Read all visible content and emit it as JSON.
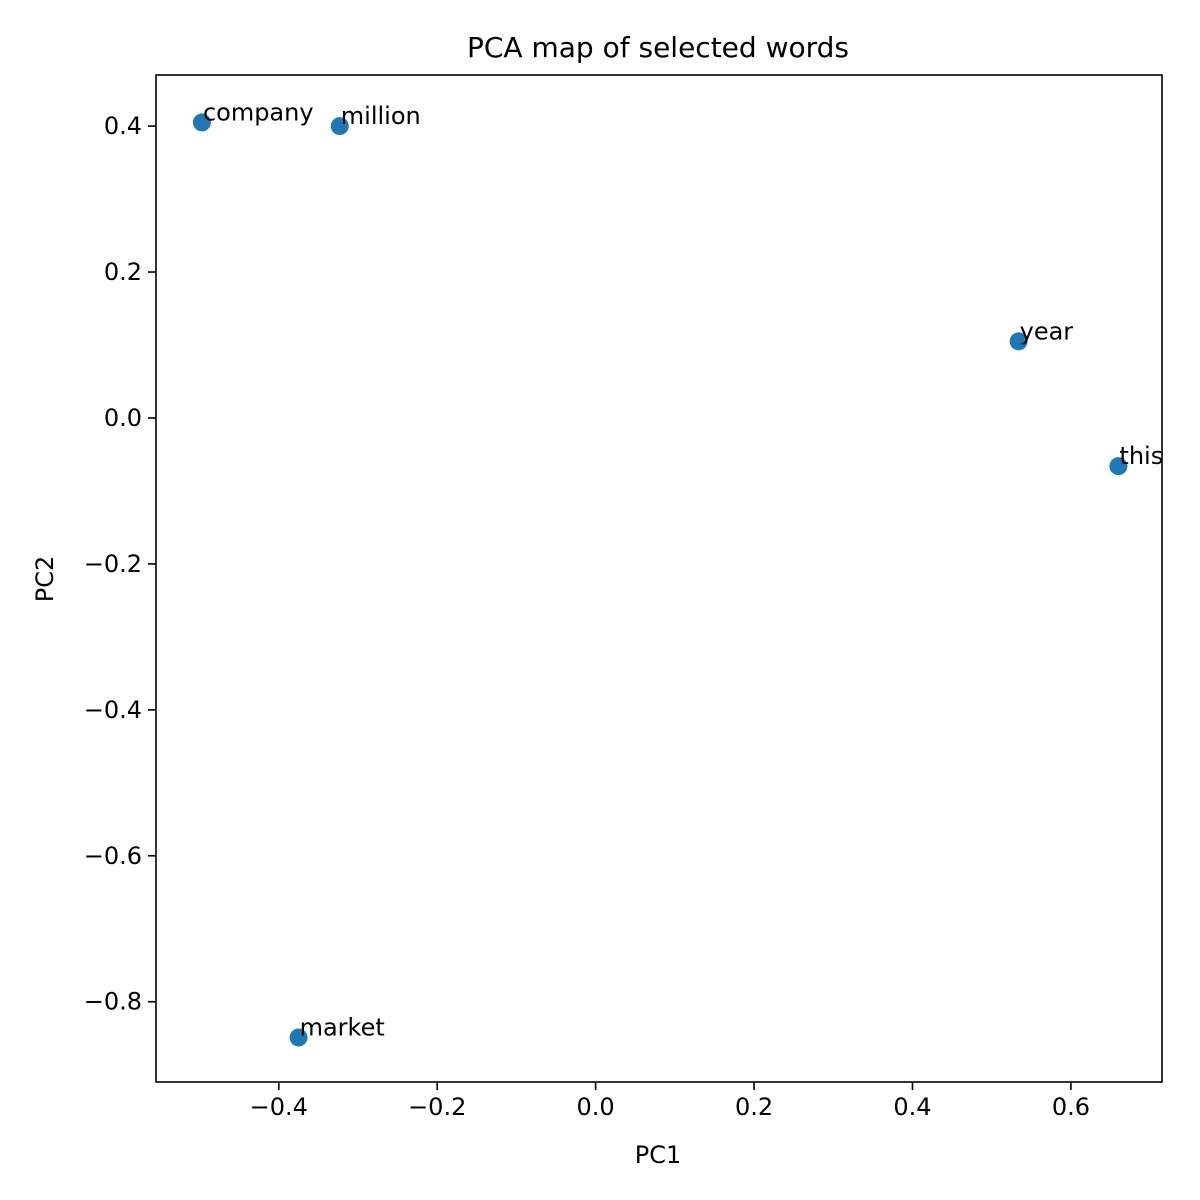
{
  "chart_data": {
    "type": "scatter",
    "title": "PCA map of selected words",
    "xlabel": "PC1",
    "ylabel": "PC2",
    "xlim": [
      -0.555,
      0.715
    ],
    "ylim": [
      -0.91,
      0.47
    ],
    "xticks": [
      -0.4,
      -0.2,
      0.0,
      0.2,
      0.4,
      0.6
    ],
    "xtick_labels": [
      "−0.4",
      "−0.2",
      "0.0",
      "0.2",
      "0.4",
      "0.6"
    ],
    "yticks": [
      0.4,
      0.2,
      0.0,
      -0.2,
      -0.4,
      -0.6,
      -0.8
    ],
    "ytick_labels": [
      "0.4",
      "0.2",
      "0.0",
      "−0.2",
      "−0.4",
      "−0.6",
      "−0.8"
    ],
    "grid": false,
    "points": [
      {
        "label": "company",
        "x": -0.497,
        "y": 0.405
      },
      {
        "label": "million",
        "x": -0.323,
        "y": 0.4
      },
      {
        "label": "year",
        "x": 0.534,
        "y": 0.105
      },
      {
        "label": "this",
        "x": 0.66,
        "y": -0.066
      },
      {
        "label": "market",
        "x": -0.375,
        "y": -0.849
      }
    ],
    "marker_color": "#1f77b4"
  }
}
